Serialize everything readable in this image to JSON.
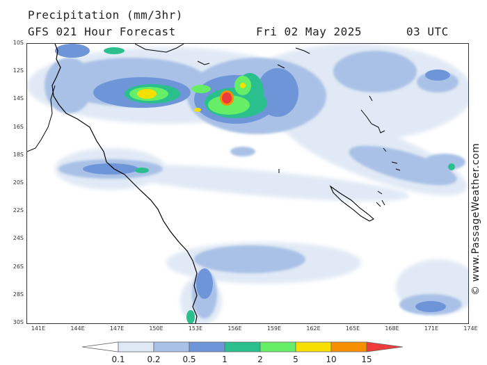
{
  "header": {
    "title": "Precipitation (mm/3hr)",
    "subtitle": "GFS 021 Hour Forecast",
    "date": "Fri 02 May 2025",
    "time": "03 UTC"
  },
  "credit": "© www.PassageWeather.com",
  "map": {
    "lat_labels": [
      "10S",
      "12S",
      "14S",
      "16S",
      "18S",
      "20S",
      "22S",
      "24S",
      "26S",
      "28S",
      "30S"
    ],
    "lon_labels": [
      "141E",
      "144E",
      "147E",
      "150E",
      "153E",
      "156E",
      "159E",
      "162E",
      "165E",
      "168E",
      "171E",
      "174E"
    ],
    "extent": {
      "lon_min": 140,
      "lon_max": 175,
      "lat_min": -30,
      "lat_max": -10
    },
    "coastline_color": "#000000"
  },
  "legend": {
    "labels": [
      "0.1",
      "0.2",
      "0.5",
      "1",
      "2",
      "5",
      "10",
      "15"
    ],
    "colors": [
      "#ffffff",
      "#dfe8f5",
      "#a9c1e6",
      "#6f95d9",
      "#2bbf8e",
      "#66ee66",
      "#f7e000",
      "#f79000",
      "#ee3b3b"
    ]
  }
}
